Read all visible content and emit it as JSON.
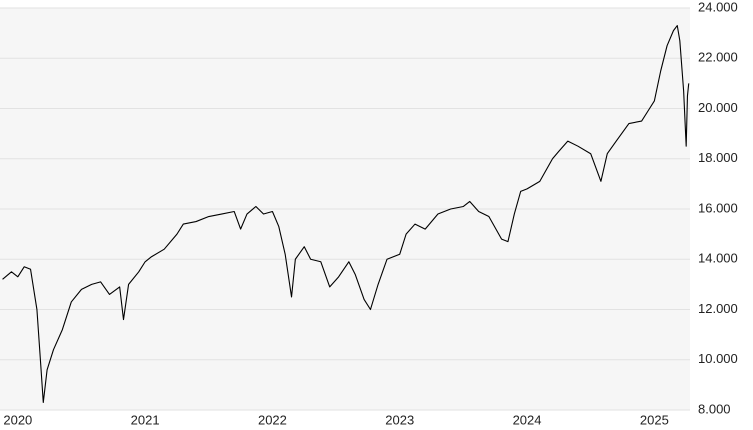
{
  "chart_data": {
    "type": "line",
    "x": [
      2019.88,
      2019.95,
      2020.0,
      2020.05,
      2020.1,
      2020.15,
      2020.18,
      2020.2,
      2020.23,
      2020.28,
      2020.35,
      2020.42,
      2020.5,
      2020.58,
      2020.65,
      2020.72,
      2020.8,
      2020.83,
      2020.87,
      2020.95,
      2021.0,
      2021.05,
      2021.15,
      2021.25,
      2021.3,
      2021.4,
      2021.5,
      2021.6,
      2021.7,
      2021.75,
      2021.8,
      2021.87,
      2021.93,
      2022.0,
      2022.05,
      2022.1,
      2022.15,
      2022.18,
      2022.25,
      2022.3,
      2022.38,
      2022.45,
      2022.52,
      2022.6,
      2022.65,
      2022.72,
      2022.77,
      2022.83,
      2022.9,
      2023.0,
      2023.05,
      2023.12,
      2023.2,
      2023.3,
      2023.4,
      2023.5,
      2023.55,
      2023.62,
      2023.7,
      2023.8,
      2023.85,
      2023.9,
      2023.95,
      2024.0,
      2024.1,
      2024.2,
      2024.25,
      2024.32,
      2024.4,
      2024.5,
      2024.58,
      2024.63,
      2024.7,
      2024.8,
      2024.9,
      2024.95,
      2025.0,
      2025.05,
      2025.1,
      2025.15,
      2025.18,
      2025.2,
      2025.23,
      2025.25,
      2025.26,
      2025.27
    ],
    "series": [
      {
        "color": "#000000",
        "values": [
          13200,
          13500,
          13300,
          13700,
          13600,
          12000,
          9800,
          8300,
          9600,
          10400,
          11200,
          12300,
          12800,
          13000,
          13100,
          12600,
          12900,
          11600,
          13000,
          13500,
          13900,
          14100,
          14400,
          15000,
          15400,
          15500,
          15700,
          15800,
          15900,
          15200,
          15800,
          16100,
          15800,
          15900,
          15300,
          14200,
          12500,
          14000,
          14500,
          14000,
          13900,
          12900,
          13300,
          13900,
          13400,
          12400,
          12000,
          13000,
          14000,
          14200,
          15000,
          15400,
          15200,
          15800,
          16000,
          16100,
          16300,
          15900,
          15700,
          14800,
          14700,
          15800,
          16700,
          16800,
          17100,
          18000,
          18300,
          18700,
          18500,
          18200,
          17100,
          18200,
          18700,
          19400,
          19500,
          19900,
          20300,
          21500,
          22500,
          23100,
          23300,
          22700,
          20700,
          18500,
          20500,
          21000
        ]
      }
    ],
    "xlim": [
      2019.86,
      2025.28
    ],
    "xticks": [
      2020,
      2021,
      2022,
      2023,
      2024,
      2025
    ],
    "ylim": [
      8000,
      24000
    ],
    "yticks": [
      {
        "value": 8000,
        "label": "8.000"
      },
      {
        "value": 10000,
        "label": "10.000"
      },
      {
        "value": 12000,
        "label": "12.000"
      },
      {
        "value": 14000,
        "label": "14.000"
      },
      {
        "value": 16000,
        "label": "16.000"
      },
      {
        "value": 18000,
        "label": "18.000"
      },
      {
        "value": 20000,
        "label": "20.000"
      },
      {
        "value": 22000,
        "label": "22.000"
      },
      {
        "value": 24000,
        "label": "24.000"
      }
    ],
    "grid": true
  }
}
